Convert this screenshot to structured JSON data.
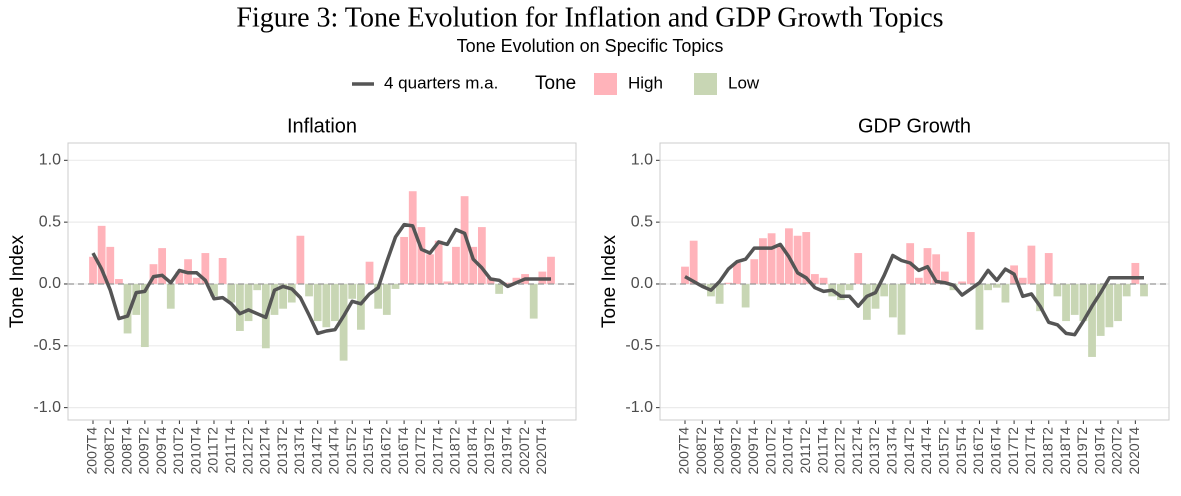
{
  "figure": {
    "title": "Figure 3: Tone Evolution for Inflation and GDP Growth Topics",
    "subtitle": "Tone Evolution on Specific Topics",
    "legend_title": "Tone"
  },
  "chart_data": [
    {
      "type": "bar",
      "title": "Inflation",
      "ylabel": "Tone Index",
      "categories": [
        "2007T4",
        null,
        "2008T2",
        null,
        "2008T4",
        null,
        "2009T2",
        null,
        "2009T4",
        null,
        "2010T2",
        null,
        "2010T4",
        null,
        "2011T2",
        null,
        "2011T4",
        null,
        "2012T2",
        null,
        "2012T4",
        null,
        "2013T2",
        null,
        "2013T4",
        null,
        "2014T2",
        null,
        "2014T4",
        null,
        "2015T2",
        null,
        "2015T4",
        null,
        "2016T2",
        null,
        "2016T4",
        null,
        "2017T2",
        null,
        "2017T4",
        null,
        "2018T2",
        null,
        "2018T4",
        null,
        "2019T2",
        null,
        "2019T4",
        null,
        "2020T2",
        null,
        "2020T4",
        null
      ],
      "series": [
        {
          "name": "4 quarters m.a.",
          "type": "line",
          "color": "#555555",
          "values": [
            0.25,
            0.12,
            -0.05,
            -0.28,
            -0.26,
            -0.07,
            -0.06,
            0.06,
            0.07,
            0.01,
            0.11,
            0.09,
            0.09,
            0.03,
            -0.12,
            -0.11,
            -0.16,
            -0.24,
            -0.21,
            -0.24,
            -0.27,
            -0.05,
            -0.02,
            -0.04,
            -0.11,
            -0.25,
            -0.4,
            -0.38,
            -0.37,
            -0.26,
            -0.14,
            -0.16,
            -0.08,
            -0.03,
            0.18,
            0.38,
            0.48,
            0.47,
            0.28,
            0.25,
            0.34,
            0.32,
            0.44,
            0.41,
            0.2,
            0.13,
            0.04,
            0.03,
            -0.02,
            0.01,
            0.04,
            0.04,
            0.04,
            0.04
          ]
        },
        {
          "name": "High",
          "type": "bar",
          "color": "#ffb3ba",
          "values": [
            0.22,
            0.47,
            0.3,
            0.04,
            null,
            null,
            null,
            0.16,
            0.29,
            null,
            0.1,
            0.2,
            0.05,
            0.25,
            null,
            0.21,
            null,
            null,
            null,
            null,
            null,
            null,
            null,
            null,
            0.39,
            null,
            null,
            null,
            null,
            null,
            null,
            null,
            0.18,
            null,
            null,
            null,
            0.38,
            0.75,
            0.46,
            0.24,
            0.35,
            0.02,
            0.3,
            0.71,
            0.3,
            0.46,
            0.05,
            null,
            0.01,
            0.05,
            0.08,
            null,
            0.1,
            0.22
          ]
        },
        {
          "name": "Low",
          "type": "bar",
          "color": "#c8d6b4",
          "values": [
            null,
            null,
            null,
            null,
            -0.4,
            -0.25,
            -0.51,
            null,
            null,
            -0.2,
            null,
            null,
            null,
            null,
            -0.1,
            null,
            -0.15,
            -0.38,
            -0.3,
            -0.05,
            -0.52,
            -0.25,
            -0.2,
            -0.15,
            null,
            -0.1,
            -0.3,
            -0.35,
            -0.3,
            -0.62,
            -0.12,
            -0.37,
            null,
            -0.2,
            -0.25,
            -0.04,
            null,
            null,
            null,
            null,
            null,
            null,
            null,
            null,
            null,
            null,
            null,
            -0.08,
            null,
            null,
            null,
            -0.28,
            null,
            null
          ]
        }
      ],
      "ylim": [
        -1.1,
        1.14
      ],
      "yticks": [
        {
          "value": -1,
          "label": "-1.0"
        },
        {
          "value": -0.5,
          "label": "-0.5"
        },
        {
          "value": 0,
          "label": "0.0"
        },
        {
          "value": 0.5,
          "label": "0.5"
        },
        {
          "value": 1,
          "label": "1.0"
        }
      ],
      "hline": 0,
      "grid": true
    },
    {
      "type": "bar",
      "title": "GDP Growth",
      "ylabel": "Tone Index",
      "categories": [
        "2007T4",
        null,
        "2008T2",
        null,
        "2008T4",
        null,
        "2009T2",
        null,
        "2009T4",
        null,
        "2010T2",
        null,
        "2010T4",
        null,
        "2011T2",
        null,
        "2011T4",
        null,
        "2012T2",
        null,
        "2012T4",
        null,
        "2013T2",
        null,
        "2013T4",
        null,
        "2014T2",
        null,
        "2014T4",
        null,
        "2015T2",
        null,
        "2015T4",
        null,
        "2016T2",
        null,
        "2016T4",
        null,
        "2017T2",
        null,
        "2017T4",
        null,
        "2018T2",
        null,
        "2018T4",
        null,
        "2019T2",
        null,
        "2019T4",
        null,
        "2020T2",
        null,
        "2020T4",
        null
      ],
      "series": [
        {
          "name": "4 quarters m.a.",
          "type": "line",
          "color": "#555555",
          "values": [
            0.06,
            0.02,
            -0.02,
            -0.05,
            0.02,
            0.12,
            0.18,
            0.2,
            0.29,
            0.29,
            0.29,
            0.32,
            0.22,
            0.09,
            0.05,
            -0.03,
            -0.06,
            -0.05,
            -0.1,
            -0.1,
            -0.18,
            -0.1,
            -0.07,
            0.07,
            0.23,
            0.19,
            0.17,
            0.11,
            0.14,
            0.02,
            0.01,
            -0.01,
            -0.09,
            -0.04,
            0.01,
            0.11,
            0.03,
            0.12,
            0.08,
            -0.1,
            -0.08,
            -0.18,
            -0.31,
            -0.33,
            -0.4,
            -0.41,
            -0.3,
            -0.18,
            -0.07,
            0.05,
            0.05,
            0.05,
            0.05,
            0.05
          ]
        },
        {
          "name": "High",
          "type": "bar",
          "color": "#ffb3ba",
          "values": [
            0.14,
            0.35,
            null,
            null,
            null,
            0.01,
            0.17,
            null,
            0.2,
            0.37,
            0.41,
            0.3,
            0.45,
            0.39,
            0.42,
            0.08,
            0.05,
            null,
            null,
            null,
            0.25,
            null,
            null,
            null,
            null,
            null,
            0.33,
            0.05,
            0.29,
            0.24,
            0.1,
            null,
            0.02,
            0.42,
            null,
            null,
            null,
            null,
            0.15,
            0.05,
            0.31,
            null,
            0.25,
            null,
            null,
            null,
            null,
            null,
            null,
            null,
            null,
            null,
            0.17,
            null
          ]
        },
        {
          "name": "Low",
          "type": "bar",
          "color": "#c8d6b4",
          "values": [
            null,
            null,
            -0.02,
            -0.1,
            -0.16,
            null,
            null,
            -0.19,
            null,
            null,
            null,
            null,
            null,
            null,
            null,
            null,
            null,
            -0.1,
            -0.13,
            -0.05,
            null,
            -0.29,
            -0.2,
            -0.1,
            -0.27,
            -0.41,
            null,
            null,
            null,
            null,
            null,
            -0.05,
            null,
            null,
            -0.37,
            -0.05,
            -0.03,
            -0.15,
            null,
            null,
            null,
            -0.22,
            null,
            -0.1,
            -0.3,
            -0.25,
            -0.3,
            -0.59,
            -0.42,
            -0.35,
            -0.3,
            -0.1,
            null,
            -0.1
          ]
        }
      ],
      "ylim": [
        -1.1,
        1.14
      ],
      "yticks": [
        {
          "value": -1,
          "label": "-1.0"
        },
        {
          "value": -0.5,
          "label": "-0.5"
        },
        {
          "value": 0,
          "label": "0.0"
        },
        {
          "value": 0.5,
          "label": "0.5"
        },
        {
          "value": 1,
          "label": "1.0"
        }
      ],
      "hline": 0,
      "grid": true
    }
  ]
}
